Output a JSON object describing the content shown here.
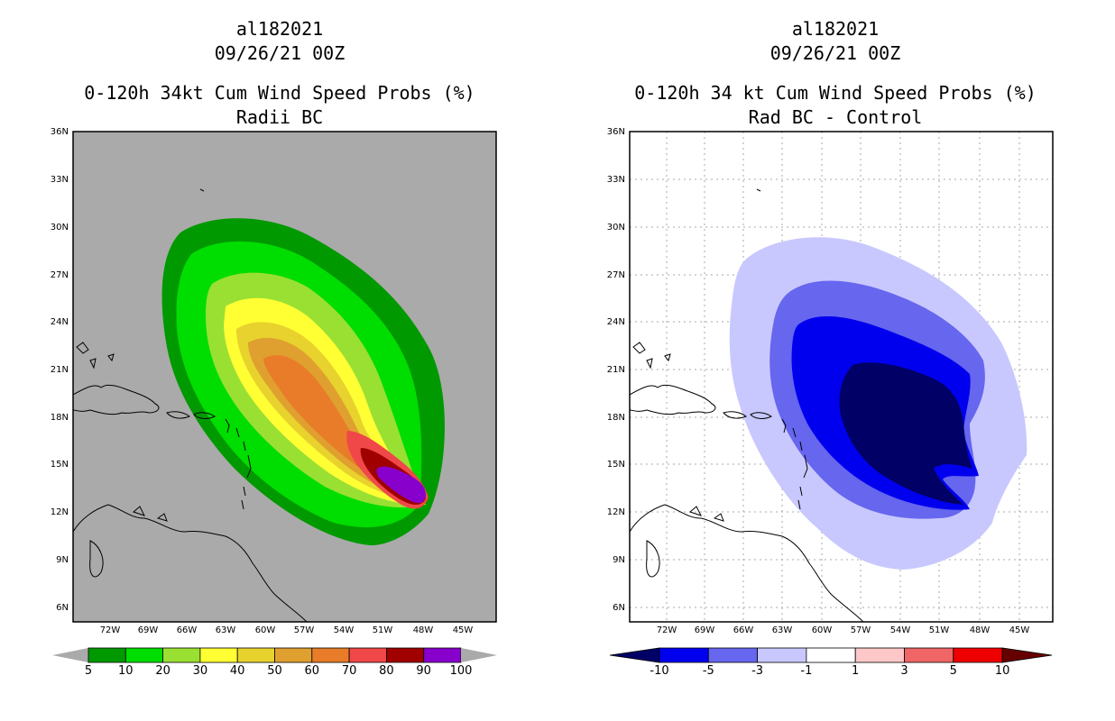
{
  "left_panel": {
    "storm_id": "al182021",
    "datetime": "09/26/21 00Z",
    "title": "0-120h 34kt Cum Wind Speed Probs (%)",
    "subtitle": "Radii BC",
    "lat_labels": [
      "36N",
      "33N",
      "30N",
      "27N",
      "24N",
      "21N",
      "18N",
      "15N",
      "12N",
      "9N",
      "6N"
    ],
    "lon_labels": [
      "72W",
      "69W",
      "66W",
      "63W",
      "60W",
      "57W",
      "54W",
      "51W",
      "48W",
      "45W"
    ],
    "colorbar": {
      "labels": [
        "5",
        "10",
        "20",
        "30",
        "40",
        "50",
        "60",
        "70",
        "80",
        "90",
        "100"
      ],
      "colors": [
        "#009900",
        "#00dd00",
        "#99e033",
        "#ffff33",
        "#e8d22d",
        "#e0a030",
        "#e87c28",
        "#f04848",
        "#a00000",
        "#8800cc"
      ]
    }
  },
  "right_panel": {
    "storm_id": "al182021",
    "datetime": "09/26/21 00Z",
    "title": "0-120h 34 kt Cum Wind Speed Probs (%)",
    "subtitle": "Rad BC - Control",
    "lat_labels": [
      "36N",
      "33N",
      "30N",
      "27N",
      "24N",
      "21N",
      "18N",
      "15N",
      "12N",
      "9N",
      "6N"
    ],
    "lon_labels": [
      "72W",
      "69W",
      "66W",
      "63W",
      "60W",
      "57W",
      "54W",
      "51W",
      "48W",
      "45W"
    ],
    "colorbar": {
      "labels": [
        "-10",
        "-5",
        "-3",
        "-1",
        "1",
        "3",
        "5",
        "10"
      ],
      "colors": [
        "#000066",
        "#0000ee",
        "#6666ee",
        "#c8c8ff",
        "#ffffff",
        "#ffc8c8",
        "#f06666",
        "#ee0000",
        "#660000"
      ]
    }
  }
}
